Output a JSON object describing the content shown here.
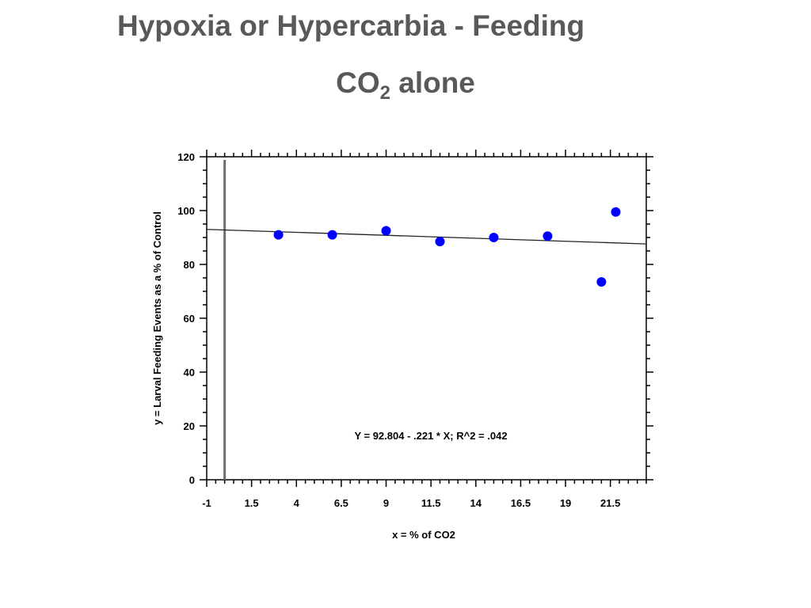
{
  "slide": {
    "title": "Hypoxia or Hypercarbia - Feeding",
    "subtitle_prefix": "CO",
    "subtitle_subscript": "2",
    "subtitle_suffix": " alone"
  },
  "chart_data": {
    "type": "scatter",
    "xlabel": "x = % of CO2",
    "ylabel": "y = Larval Feeding Events as a % of Control",
    "xlim": [
      -1,
      23.5
    ],
    "ylim": [
      0,
      120
    ],
    "x_ticks": [
      -1,
      1.5,
      4,
      6.5,
      9,
      11.5,
      14,
      16.5,
      19,
      21.5
    ],
    "y_ticks": [
      0,
      20,
      40,
      60,
      80,
      100,
      120
    ],
    "reference_line_x": 0,
    "regression": {
      "intercept": 92.804,
      "slope": -0.221,
      "x_range": [
        -1,
        23.5
      ]
    },
    "annotation": "Y = 92.804 - .221 * X; R^2 = .042",
    "grid": false,
    "point_color": "#0000ff",
    "series": [
      {
        "points": [
          {
            "x": 3,
            "y": 91
          },
          {
            "x": 6,
            "y": 91
          },
          {
            "x": 9,
            "y": 92.5
          },
          {
            "x": 12,
            "y": 88.5
          },
          {
            "x": 15,
            "y": 90
          },
          {
            "x": 18,
            "y": 90.5
          },
          {
            "x": 21,
            "y": 73.5
          },
          {
            "x": 21.8,
            "y": 99.5
          }
        ]
      }
    ]
  }
}
